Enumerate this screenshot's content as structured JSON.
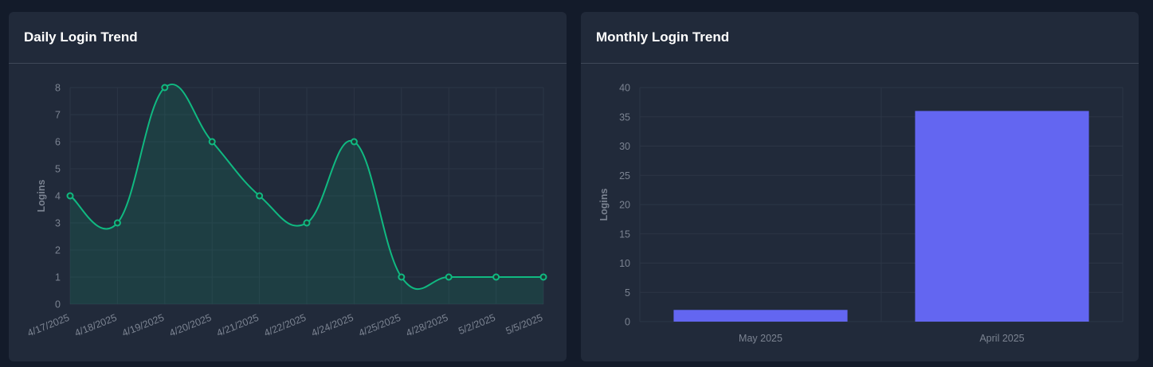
{
  "colors": {
    "line": "#10b981",
    "area": "rgba(16,185,129,0.14)",
    "bar": "#6366f1",
    "grid": "#2c3545"
  },
  "charts": [
    {
      "title": "Daily Login Trend",
      "chart_data": {
        "type": "line",
        "title": "Daily Login Trend",
        "ylabel": "Logins",
        "categories": [
          "4/17/2025",
          "4/18/2025",
          "4/19/2025",
          "4/20/2025",
          "4/21/2025",
          "4/22/2025",
          "4/24/2025",
          "4/25/2025",
          "4/28/2025",
          "5/2/2025",
          "5/5/2025"
        ],
        "values": [
          4,
          3,
          8,
          6,
          4,
          3,
          6,
          1,
          1,
          1,
          1
        ],
        "ylim": [
          0,
          8
        ],
        "yticks": [
          0,
          1,
          2,
          3,
          4,
          5,
          6,
          7,
          8
        ],
        "grid": true,
        "smooth": true,
        "filled": true
      }
    },
    {
      "title": "Monthly Login Trend",
      "chart_data": {
        "type": "bar",
        "title": "Monthly Login Trend",
        "ylabel": "Logins",
        "categories": [
          "May 2025",
          "April 2025"
        ],
        "values": [
          2,
          36
        ],
        "ylim": [
          0,
          40
        ],
        "yticks": [
          0,
          5,
          10,
          15,
          20,
          25,
          30,
          35,
          40
        ],
        "grid": true
      }
    }
  ]
}
